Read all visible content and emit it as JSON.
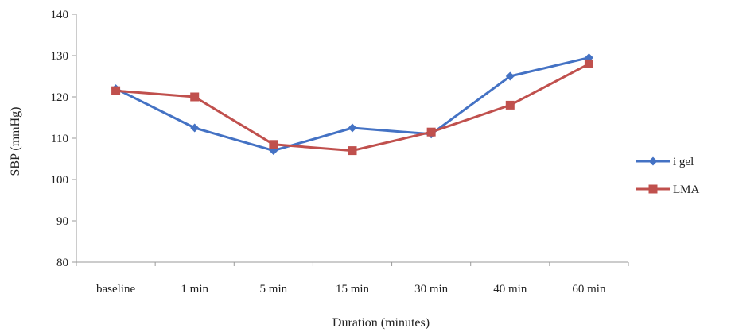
{
  "chart_data": {
    "type": "line",
    "title": "",
    "xlabel": "Duration (minutes)",
    "ylabel": "SBP (mmHg)",
    "categories": [
      "baseline",
      "1 min",
      "5 min",
      "15 min",
      "30 min",
      "40 min",
      "60 min"
    ],
    "ylim": [
      80,
      140
    ],
    "yticks": [
      80,
      90,
      100,
      110,
      120,
      130,
      140
    ],
    "grid": false,
    "legend_position": "right",
    "series": [
      {
        "name": "i gel",
        "color": "#4472C4",
        "marker": "diamond",
        "values": [
          122,
          112.5,
          107,
          112.5,
          111,
          125,
          129.5
        ]
      },
      {
        "name": "LMA",
        "color": "#C0504D",
        "marker": "square",
        "values": [
          121.5,
          120,
          108.5,
          107,
          111.5,
          118,
          128
        ]
      }
    ]
  }
}
